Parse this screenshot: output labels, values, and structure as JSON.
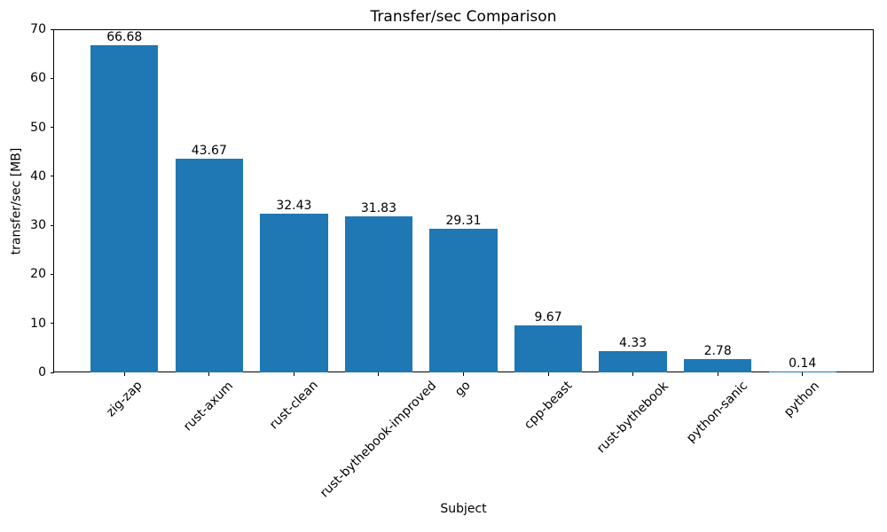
{
  "chart_data": {
    "type": "bar",
    "title": "Transfer/sec Comparison",
    "xlabel": "Subject",
    "ylabel": "transfer/sec [MB]",
    "categories": [
      "zig-zap",
      "rust-axum",
      "rust-clean",
      "rust-bythebook-improved",
      "go",
      "cpp-beast",
      "rust-bythebook",
      "python-sanic",
      "python"
    ],
    "values": [
      66.68,
      43.67,
      32.43,
      31.83,
      29.31,
      9.67,
      4.33,
      2.78,
      0.14
    ],
    "bar_labels": [
      "66.68",
      "43.67",
      "32.43",
      "31.83",
      "29.31",
      "9.67",
      "4.33",
      "2.78",
      "0.14"
    ],
    "ylim": [
      0,
      70
    ],
    "yticks": [
      0,
      10,
      20,
      30,
      40,
      50,
      60,
      70
    ],
    "bar_color": "#1f77b4",
    "background_color": "#ffffff",
    "text_color": "#000000",
    "grid": false,
    "legend": "none",
    "x_tick_label_rotation_deg": 45
  }
}
